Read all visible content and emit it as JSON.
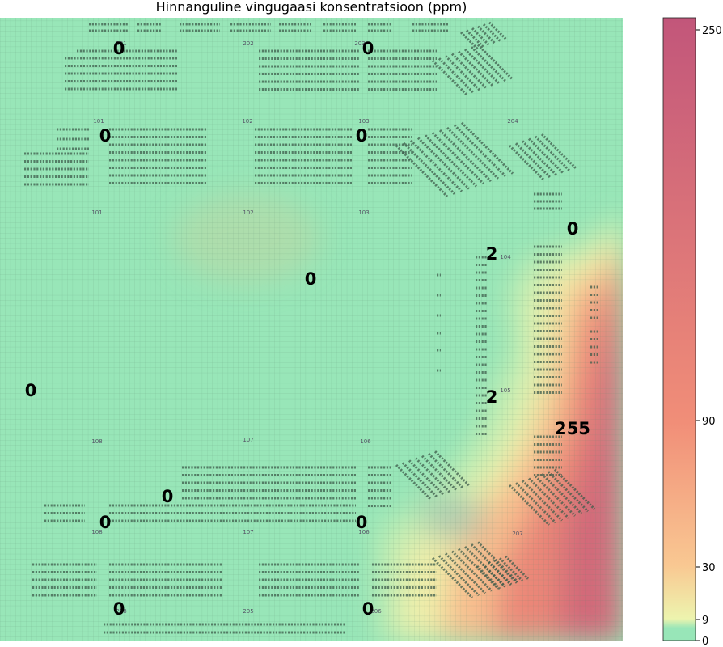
{
  "chart_data": {
    "type": "heatmap",
    "title": "Hinnanguline vingugaasi konsentratsioon (ppm)",
    "xlabel": "",
    "ylabel": "",
    "colorbar": {
      "ticks": [
        0,
        9,
        30,
        90,
        250
      ],
      "range": [
        0,
        255
      ],
      "stops": [
        {
          "value": 0,
          "color": "#98e6b8"
        },
        {
          "value": 9,
          "color": "#edf4ae"
        },
        {
          "value": 30,
          "color": "#f9c892"
        },
        {
          "value": 90,
          "color": "#f18e78"
        },
        {
          "value": 255,
          "color": "#c2567a"
        }
      ]
    },
    "sensors": [
      {
        "label": "0",
        "value": 0
      },
      {
        "label": "0",
        "value": 0
      },
      {
        "label": "0",
        "value": 0
      },
      {
        "label": "0",
        "value": 0
      },
      {
        "label": "0",
        "value": 0
      },
      {
        "label": "2",
        "value": 2
      },
      {
        "label": "0",
        "value": 0
      },
      {
        "label": "0",
        "value": 0
      },
      {
        "label": "2",
        "value": 2
      },
      {
        "label": "255",
        "value": 255
      },
      {
        "label": "0",
        "value": 0
      },
      {
        "label": "0",
        "value": 0
      },
      {
        "label": "0",
        "value": 0
      },
      {
        "label": "0",
        "value": 0
      },
      {
        "label": "0",
        "value": 0
      }
    ],
    "room_labels": [
      "201",
      "202",
      "203",
      "101",
      "102",
      "103",
      "204",
      "101",
      "102",
      "103",
      "104",
      "105",
      "108",
      "107",
      "106",
      "108",
      "107",
      "106",
      "207",
      "208",
      "205",
      "206"
    ]
  }
}
